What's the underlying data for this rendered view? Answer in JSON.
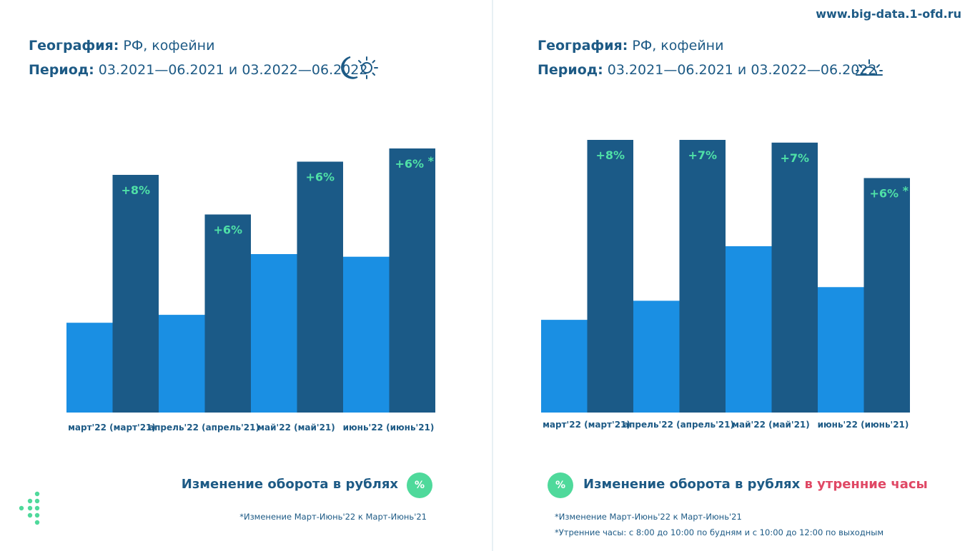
{
  "site_url": "www.big-data.1-ofd.ru",
  "panels": [
    {
      "geo_label": "География:",
      "geo_value": "РФ, кофейни",
      "period_label": "Период:",
      "period_value": "03.2021—06.2021 и 03.2022—06.2022",
      "icon": "day-night-icon",
      "legend_text": "Изменение оборота в рублях",
      "legend_highlight": "",
      "badge": "%",
      "notes": [
        "*Изменение Март-Июнь'22 к Март-Июнь'21"
      ]
    },
    {
      "geo_label": "География:",
      "geo_value": "РФ, кофейни",
      "period_label": "Период:",
      "period_value": "03.2021—06.2021 и 03.2022—06.2022",
      "icon": "sunrise-icon",
      "legend_text": "Изменение оборота в рублях",
      "legend_highlight": "в утренние часы",
      "badge": "%",
      "notes": [
        "*Изменение Март-Июнь'22 к Март-Июнь'21",
        "*Утренние часы: с 8:00 до 10:00 по будням и с 10:00 до 12:00 по выходным"
      ]
    }
  ],
  "chart_data": [
    {
      "type": "bar",
      "categories": [
        "март'22 (март'21)",
        "апрель'22 (апрель'21)",
        "май'22 (май'21)",
        "июнь'22 (июнь'21)"
      ],
      "series": [
        {
          "values": [
            0.34,
            0.37,
            0.6,
            0.59
          ],
          "color": "#1a8fe3"
        },
        {
          "values": [
            0.9,
            0.75,
            0.95,
            1.0
          ],
          "color": "#1b5a87"
        }
      ],
      "data_labels": [
        "+8%",
        "+6%",
        "+6%",
        "+6%"
      ],
      "label_footnote": [
        false,
        false,
        false,
        true
      ],
      "ylim": [
        0,
        1
      ],
      "grid": false
    },
    {
      "type": "bar",
      "categories": [
        "март'22 (март'21)",
        "апрель'22 (апрель'21)",
        "май'22 (май'21)",
        "июнь'22 (июнь'21)"
      ],
      "series": [
        {
          "values": [
            0.34,
            0.41,
            0.61,
            0.46
          ],
          "color": "#1a8fe3"
        },
        {
          "values": [
            1.0,
            1.0,
            0.99,
            0.86
          ],
          "color": "#1b5a87"
        }
      ],
      "data_labels": [
        "+8%",
        "+7%",
        "+7%",
        "+6%"
      ],
      "label_footnote": [
        false,
        false,
        false,
        true
      ],
      "ylim": [
        0,
        1
      ],
      "grid": false
    }
  ]
}
